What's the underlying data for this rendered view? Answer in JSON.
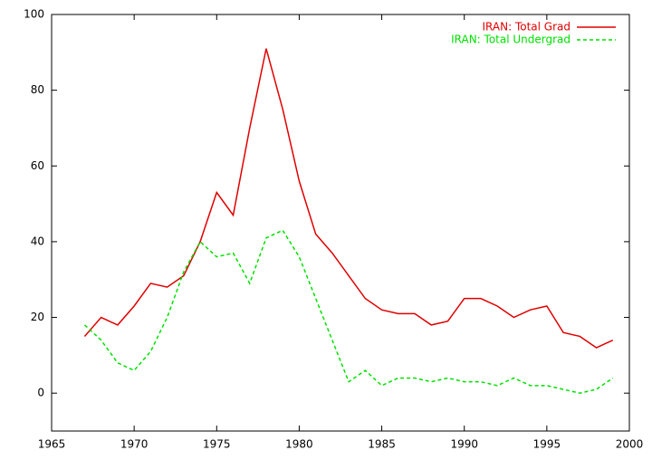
{
  "chart_data": {
    "type": "line",
    "x": [
      1967,
      1968,
      1969,
      1970,
      1971,
      1972,
      1973,
      1974,
      1975,
      1976,
      1977,
      1978,
      1979,
      1980,
      1981,
      1982,
      1983,
      1984,
      1985,
      1986,
      1987,
      1988,
      1989,
      1990,
      1991,
      1992,
      1993,
      1994,
      1995,
      1996,
      1997,
      1998,
      1999
    ],
    "series": [
      {
        "name": "IRAN: Total Grad",
        "color": "#e00000",
        "dash": "none",
        "values": [
          15,
          20,
          18,
          23,
          29,
          28,
          31,
          40,
          53,
          47,
          70,
          91,
          75,
          56,
          42,
          37,
          31,
          25,
          22,
          21,
          21,
          18,
          19,
          25,
          25,
          23,
          20,
          22,
          23,
          16,
          15,
          12,
          14
        ]
      },
      {
        "name": "IRAN: Total Undergrad",
        "color": "#00e000",
        "dash": "4 3",
        "values": [
          18,
          14,
          8,
          6,
          11,
          20,
          32,
          40,
          36,
          37,
          29,
          41,
          43,
          36,
          25,
          14,
          3,
          6,
          2,
          4,
          4,
          3,
          4,
          3,
          3,
          2,
          4,
          2,
          2,
          1,
          0,
          1,
          4
        ]
      }
    ],
    "xlim": [
      1965,
      2000
    ],
    "xticks": [
      1965,
      1970,
      1975,
      1980,
      1985,
      1990,
      1995,
      2000
    ],
    "ylim": [
      -10,
      100
    ],
    "yticks": [
      0,
      20,
      40,
      60,
      80,
      100
    ],
    "legend": "top-right"
  }
}
